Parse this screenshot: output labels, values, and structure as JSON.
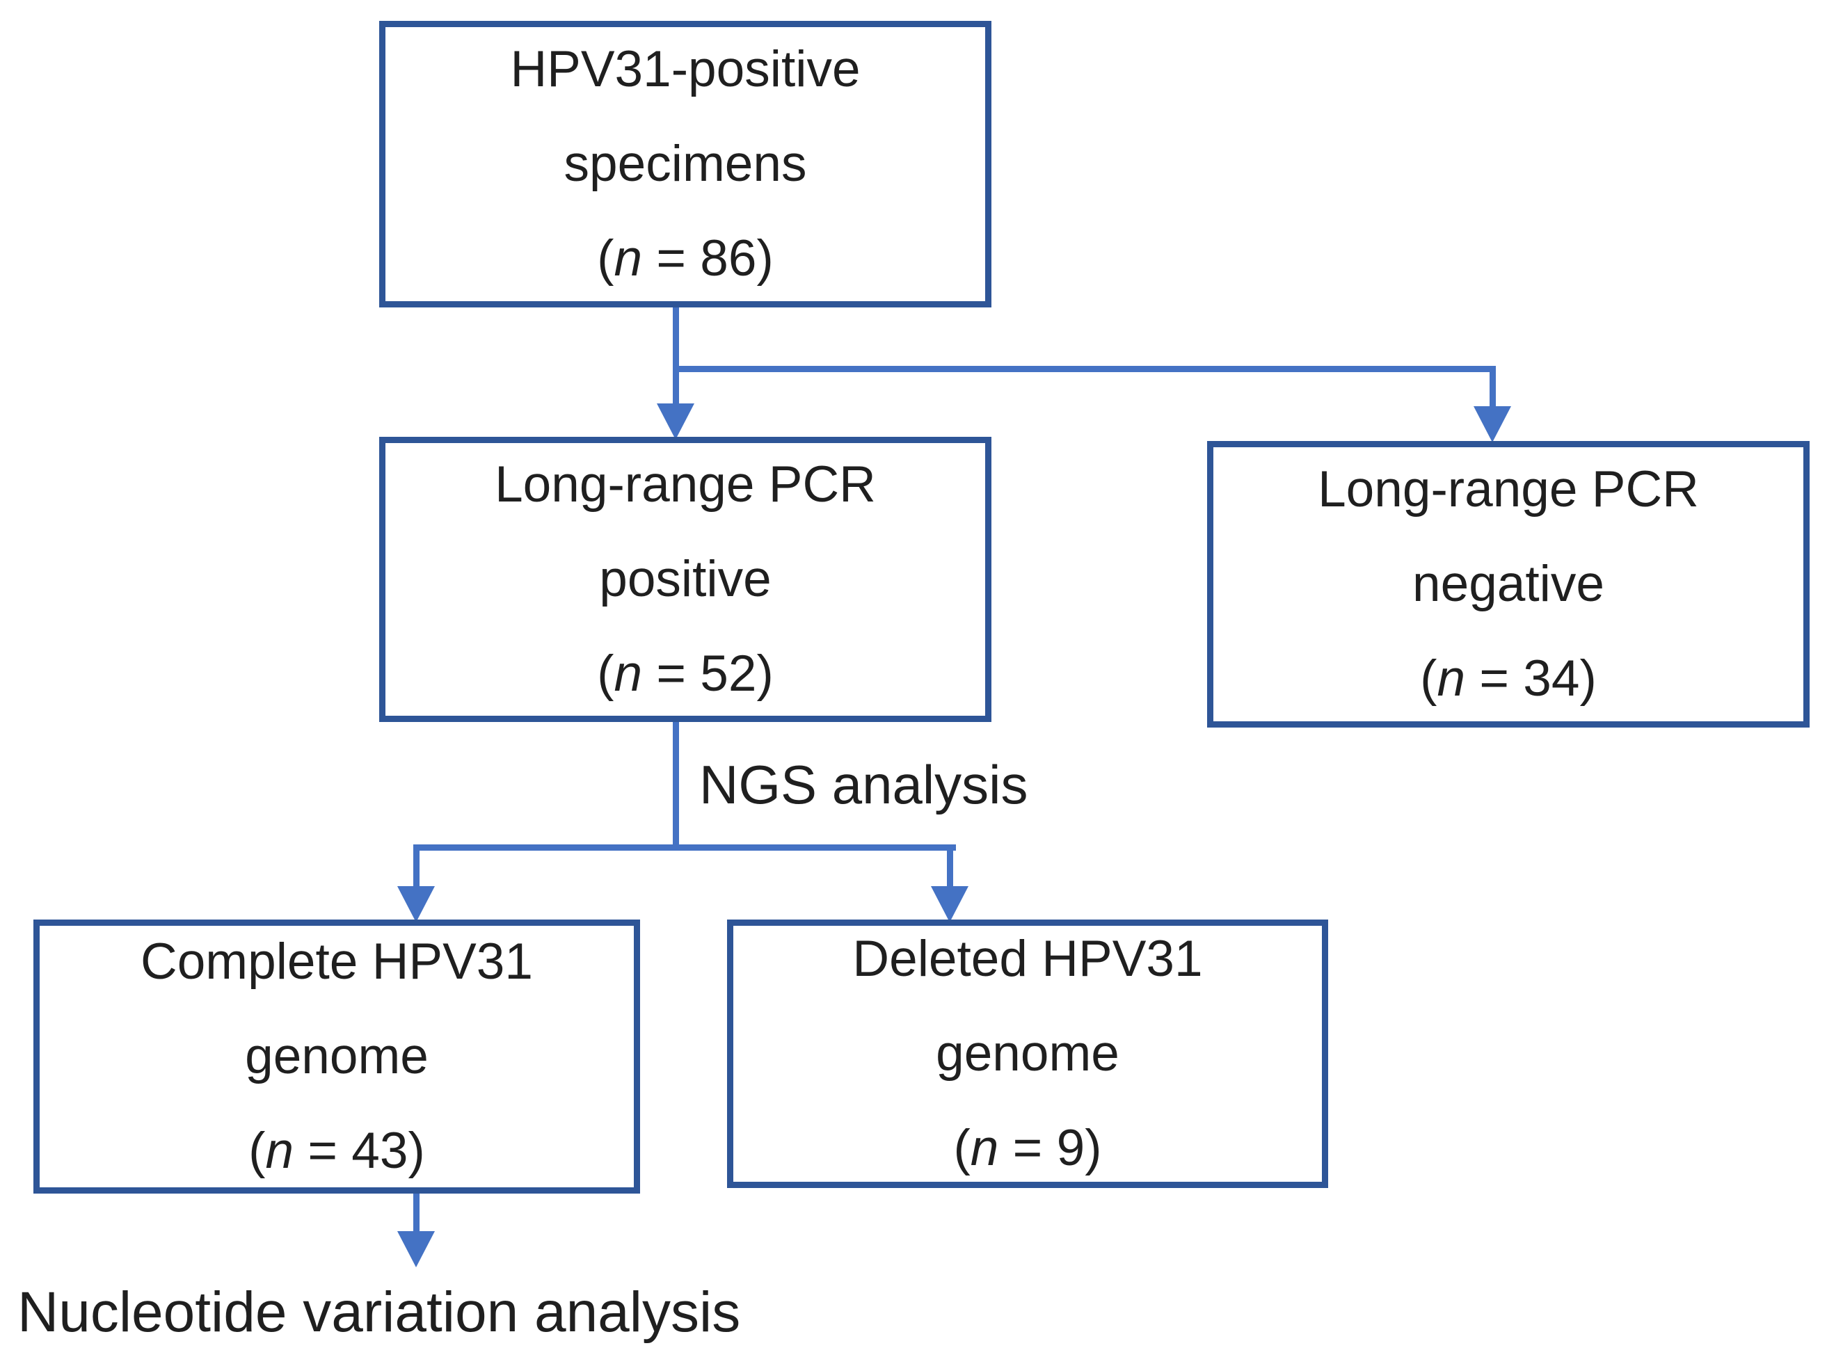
{
  "diagram": {
    "kind": "study-flowchart",
    "subject": "HPV31 specimen analysis workflow"
  },
  "boxes": {
    "top": {
      "line1": "HPV31-positive",
      "line2": "specimens",
      "n_value": "86"
    },
    "pcr_positive": {
      "line1": "Long-range PCR",
      "line2": "positive",
      "n_value": "52"
    },
    "pcr_negative": {
      "line1": "Long-range PCR",
      "line2": "negative",
      "n_value": "34"
    },
    "complete_genome": {
      "line1": "Complete HPV31",
      "line2": "genome",
      "n_value": "43"
    },
    "deleted_genome": {
      "line1": "Deleted HPV31",
      "line2": "genome",
      "n_value": "9"
    }
  },
  "notation": {
    "open_paren": "(",
    "n_symbol": "n",
    "equals": " = ",
    "close_paren": ")"
  },
  "labels": {
    "ngs_analysis": "NGS analysis",
    "nucleotide_analysis": "Nucleotide variation analysis"
  },
  "colors": {
    "box_border": "#2e5597",
    "connector": "#4472c4",
    "text": "#1f1f1f",
    "background": "#ffffff"
  }
}
